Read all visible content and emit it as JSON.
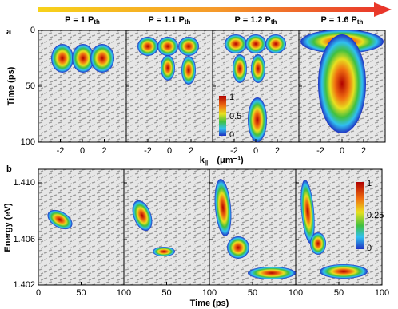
{
  "panel_a": {
    "label": "a",
    "y_axis_label": "Time (ps)",
    "y_ticks": [
      "0",
      "50",
      "100"
    ],
    "x_axis_label": {
      "main": "k",
      "sub": "||",
      "unit": "(μm⁻¹)"
    },
    "subplots": [
      {
        "title": {
          "main": "P = 1 P",
          "sub": "th"
        },
        "x_ticks": [
          "-2",
          "0",
          "2"
        ]
      },
      {
        "title": {
          "main": "P = 1.1 P",
          "sub": "th"
        },
        "x_ticks": [
          "-2",
          "0",
          "2"
        ]
      },
      {
        "title": {
          "main": "P = 1.2 P",
          "sub": "th"
        },
        "x_ticks": [
          "-2",
          "0",
          "2"
        ]
      },
      {
        "title": {
          "main": "P = 1.6 P",
          "sub": "th"
        },
        "x_ticks": [
          "-2",
          "0",
          "2"
        ]
      }
    ],
    "colorbar_ticks": [
      "1",
      "0.5",
      "0"
    ]
  },
  "panel_b": {
    "label": "b",
    "y_axis_label": "Energy (eV)",
    "y_ticks": [
      "1.410",
      "1.406",
      "1.402"
    ],
    "x_axis_label": "Time (ps)",
    "subplots": [
      {
        "x_ticks": [
          "0",
          "50",
          "100"
        ]
      },
      {
        "x_ticks": [
          "50",
          "100"
        ]
      },
      {
        "x_ticks": [
          "50",
          "100"
        ]
      },
      {
        "x_ticks": [
          "50",
          "100"
        ]
      }
    ],
    "colorbar_ticks": [
      "1",
      "0.25",
      "0"
    ]
  }
}
